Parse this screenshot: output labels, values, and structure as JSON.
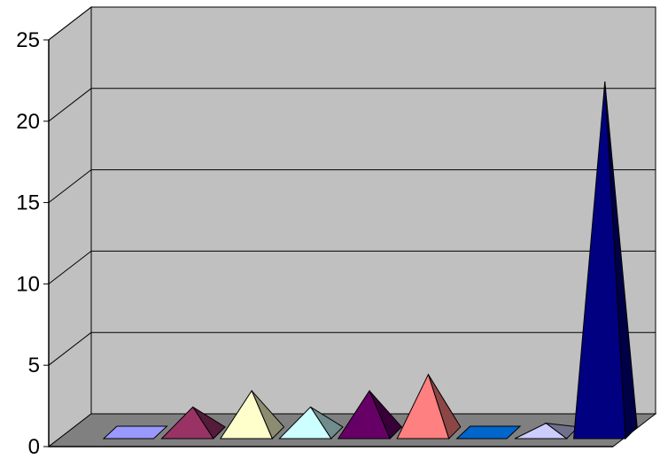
{
  "chart_data": {
    "type": "bar",
    "style": "3d-pyramid",
    "categories": [
      "",
      "",
      "",
      "",
      "",
      "",
      "",
      "",
      ""
    ],
    "values": [
      0,
      2,
      3,
      2,
      3,
      4,
      0,
      1,
      22
    ],
    "ylim": [
      0,
      25
    ],
    "yticks": [
      "0",
      "5",
      "10",
      "15",
      "20",
      "25"
    ],
    "grid": true,
    "legend": "none",
    "colors": {
      "wall": "#c0c0c0",
      "floor": "#808080",
      "bars": [
        "#9999ff",
        "#993366",
        "#ffffcc",
        "#ccffff",
        "#660066",
        "#ff8080",
        "#0066cc",
        "#ccccff",
        "#000080"
      ]
    }
  }
}
